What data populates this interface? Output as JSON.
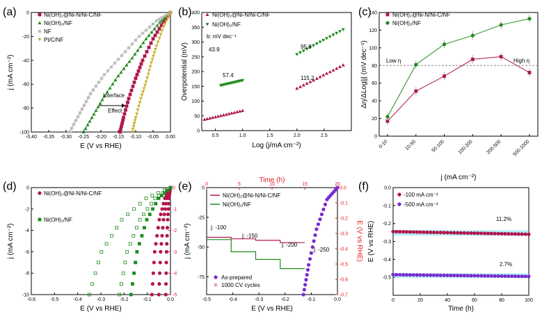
{
  "panels": {
    "a": "(a)",
    "b": "(b)",
    "c": "(c)",
    "d": "(d)",
    "e": "(e)",
    "f": "(f)"
  },
  "colors": {
    "nin": "#b0174d",
    "nioh": "#1e8a1e",
    "nf": "#b8b8b8",
    "ptc": "#c9b22c",
    "red_axis": "#e41a1c",
    "purple": "#7a2bd1",
    "cyan": "#2dd4e6"
  },
  "chart_data": [
    {
      "panel": "a",
      "type": "line",
      "xlabel": "E (V vs RHE)",
      "ylabel": "j (mA cm⁻²)",
      "xlim": [
        -0.4,
        0.0
      ],
      "ylim": [
        -100,
        0
      ],
      "xticks": [
        "-0.40",
        "-0.35",
        "-0.30",
        "-0.25",
        "-0.20",
        "-0.15",
        "-0.10",
        "-0.05",
        "0.00"
      ],
      "yticks": [
        "0",
        "-20",
        "-40",
        "-60",
        "-80",
        "-100"
      ],
      "legend": [
        "Ni(OH)₂@Ni-N/Ni-C/NF",
        "Ni(OH)₂/NF",
        "NF",
        "Pt/C/NF"
      ],
      "annotations": [
        "Interface",
        "Effect"
      ],
      "series": [
        {
          "name": "Ni(OH)₂@Ni-N/Ni-C/NF",
          "x": [
            0.0,
            -0.02,
            -0.05,
            -0.08,
            -0.1,
            -0.12,
            -0.135,
            -0.145
          ],
          "y": [
            0,
            -8,
            -22,
            -40,
            -55,
            -72,
            -88,
            -100
          ]
        },
        {
          "name": "Ni(OH)₂/NF",
          "x": [
            0.0,
            -0.03,
            -0.07,
            -0.11,
            -0.15,
            -0.19,
            -0.22,
            -0.25
          ],
          "y": [
            0,
            -8,
            -22,
            -38,
            -53,
            -70,
            -85,
            -100
          ]
        },
        {
          "name": "NF",
          "x": [
            0.0,
            -0.04,
            -0.09,
            -0.14,
            -0.19,
            -0.23,
            -0.26,
            -0.29
          ],
          "y": [
            0,
            -7,
            -20,
            -36,
            -52,
            -68,
            -84,
            -100
          ]
        },
        {
          "name": "Pt/C/NF",
          "x": [
            0.0,
            -0.02,
            -0.04,
            -0.055,
            -0.07,
            -0.085,
            -0.1,
            -0.11
          ],
          "y": [
            0,
            -12,
            -28,
            -42,
            -58,
            -72,
            -88,
            -100
          ]
        }
      ]
    },
    {
      "panel": "b",
      "type": "scatter",
      "xlabel": "Log (j/mA cm⁻²)",
      "ylabel": "Overpotential (mV)",
      "xlim": [
        0.25,
        3.0
      ],
      "ylim": [
        0,
        400
      ],
      "xticks": [
        "0.5",
        "1.0",
        "1.5",
        "2.0",
        "2.5"
      ],
      "yticks": [
        "0",
        "50",
        "100",
        "150",
        "200",
        "250",
        "300",
        "350",
        "400"
      ],
      "legend": [
        "Ni(OH)₂@Ni-N/Ni-C/NF",
        "Ni(OH)₂/NF"
      ],
      "note": "b: mV dec⁻¹",
      "labels": [
        "43.9",
        "57.4",
        "95.8",
        "115.2"
      ],
      "series": [
        {
          "name": "Ni(OH)₂@Ni-N/Ni-C/NF",
          "segments": [
            {
              "x": [
                0.3,
                1.0
              ],
              "y": [
                38,
                68
              ]
            },
            {
              "x": [
                2.0,
                2.85
              ],
              "y": [
                143,
                222
              ]
            }
          ]
        },
        {
          "name": "Ni(OH)₂/NF",
          "segments": [
            {
              "x": [
                0.6,
                1.0
              ],
              "y": [
                153,
                170
              ]
            },
            {
              "x": [
                2.0,
                2.85
              ],
              "y": [
                258,
                342
              ]
            }
          ]
        }
      ]
    },
    {
      "panel": "c",
      "type": "line",
      "xlabel": "j (mA cm⁻²)",
      "ylabel": "Δη/ΔLog|j| (mV dec⁻¹)",
      "ylim": [
        0,
        140
      ],
      "categories": [
        "0-10",
        "10-50",
        "50-100",
        "100-200",
        "200-500",
        "500-1000"
      ],
      "yticks": [
        "0",
        "20",
        "40",
        "60",
        "80",
        "100",
        "120",
        "140"
      ],
      "legend": [
        "Ni(OH)₂@Ni-N/Ni-C/NF",
        "Ni(OH)₂/NF"
      ],
      "annotations": [
        "Low η",
        "High η"
      ],
      "reference_line": 80,
      "series": [
        {
          "name": "Ni(OH)₂@Ni-N/Ni-C/NF",
          "values": [
            17,
            51,
            68,
            87,
            90,
            72
          ]
        },
        {
          "name": "Ni(OH)₂/NF",
          "values": [
            22,
            81,
            104,
            114,
            126,
            133
          ]
        }
      ]
    },
    {
      "panel": "d",
      "type": "line",
      "xlabel": "E (V vs RHE)",
      "ylabel": "j (mA cm⁻²)",
      "xlim": [
        -0.6,
        0.0
      ],
      "ylim": [
        -10,
        0
      ],
      "y2lim": [
        -5,
        0
      ],
      "xticks": [
        "-0.6",
        "-0.5",
        "-0.4",
        "-0.3",
        "-0.2",
        "-0.1",
        "0.0"
      ],
      "yticks": [
        "0",
        "-2",
        "-4",
        "-6",
        "-8",
        "-10"
      ],
      "y2ticks": [
        "0",
        "-1",
        "-2",
        "-3",
        "-4",
        "-5"
      ],
      "legend": [
        "Ni(OH)₂@Ni-N/Ni-C/NF",
        "Ni(OH)₂/NF"
      ],
      "series": [
        {
          "name": "Ni(OH)₂@Ni-N/Ni-C/NF",
          "onset": [
            -0.02,
            -0.05,
            -0.08
          ]
        },
        {
          "name": "Ni(OH)₂/NF",
          "onset": [
            -0.17,
            -0.22,
            -0.35
          ]
        }
      ]
    },
    {
      "panel": "e",
      "type": "line",
      "xlabel": "E (V vs RHE)",
      "ylabel": "j (mA cm⁻²)",
      "x2label": "Time (h)",
      "y2label": "E (V vs RHE)",
      "xlim": [
        -0.5,
        0.0
      ],
      "ylim": [
        -90,
        0
      ],
      "x2lim": [
        0,
        20
      ],
      "y2lim": [
        -0.7,
        0.0
      ],
      "xticks": [
        "-0.5",
        "-0.4",
        "-0.3",
        "-0.2",
        "-0.1",
        "0.0"
      ],
      "yticks": [
        "0",
        "-25",
        "-50",
        "-75"
      ],
      "x2ticks": [
        "0",
        "5",
        "10",
        "15",
        "20"
      ],
      "y2ticks": [
        "0.0",
        "-0.1",
        "-0.2",
        "-0.3",
        "-0.4",
        "-0.5",
        "-0.6",
        "-0.7"
      ],
      "legend": [
        "Ni(OH)₂@Ni-N/Ni-C/NF",
        "Ni(OH)₂/NF"
      ],
      "legend2": [
        "As-prepared",
        "1000 CV cycles"
      ],
      "steps": [
        "j: -100",
        "j: -150",
        "j: -200",
        "j: -250"
      ],
      "series": [
        {
          "name": "Ni(OH)₂@Ni-N/Ni-C/NF",
          "steps_E": [
            -0.325,
            -0.335,
            -0.345,
            -0.36
          ]
        },
        {
          "name": "Ni(OH)₂/NF",
          "steps_E": [
            -0.34,
            -0.42,
            -0.47,
            -0.53
          ]
        }
      ]
    },
    {
      "panel": "f",
      "type": "line",
      "xlabel": "Time (h)",
      "ylabel": "E (V vs RHE)",
      "xlim": [
        0,
        100
      ],
      "ylim": [
        -0.6,
        0.0
      ],
      "xticks": [
        "0",
        "20",
        "40",
        "60",
        "80",
        "100"
      ],
      "yticks": [
        "0.0",
        "-0.1",
        "-0.2",
        "-0.3",
        "-0.4",
        "-0.5"
      ],
      "legend": [
        "-100 mA cm⁻²",
        "-500 mA cm⁻²"
      ],
      "labels": [
        "11.2%",
        "2.7%"
      ],
      "series": [
        {
          "name": "-100 mA cm⁻²",
          "x": [
            0,
            100
          ],
          "y": [
            -0.245,
            -0.26
          ]
        },
        {
          "name": "-500 mA cm⁻²",
          "x": [
            0,
            100
          ],
          "y": [
            -0.485,
            -0.495
          ]
        }
      ]
    }
  ]
}
